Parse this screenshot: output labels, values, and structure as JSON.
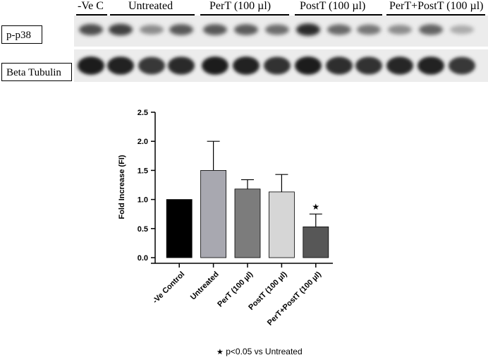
{
  "blot": {
    "lanes": [
      {
        "label": "-Ve C",
        "bands": 1
      },
      {
        "label": "Untreated",
        "bands": 3
      },
      {
        "label": "PerT (100 µl)",
        "bands": 3
      },
      {
        "label": "PostT (100 µl)",
        "bands": 3
      },
      {
        "label": "PerT+PostT (100 µl)",
        "bands": 3
      }
    ],
    "rows": [
      {
        "label": "p-p38",
        "intensities": [
          0.75,
          0.82,
          0.45,
          0.7,
          0.7,
          0.68,
          0.6,
          0.92,
          0.62,
          0.55,
          0.45,
          0.65,
          0.3
        ]
      },
      {
        "label": "Beta Tubulin",
        "intensities": [
          0.98,
          0.95,
          0.85,
          0.92,
          0.97,
          0.96,
          0.88,
          0.97,
          0.9,
          0.88,
          0.93,
          0.95,
          0.85
        ]
      }
    ]
  },
  "chart_data": {
    "type": "bar",
    "categories": [
      "-Ve Control",
      "Untreated",
      "PerT (100 µl)",
      "PostT (100 µl)",
      "PerT+PostT (100 µl)"
    ],
    "values": [
      1.0,
      1.5,
      1.18,
      1.13,
      0.53
    ],
    "errors": [
      0.0,
      0.5,
      0.16,
      0.3,
      0.22
    ],
    "colors": [
      "#000000",
      "#a8a8b0",
      "#7c7c7c",
      "#d6d6d6",
      "#575757"
    ],
    "significant": [
      false,
      false,
      false,
      false,
      true
    ],
    "ylabel": "Fold Increase (FI)",
    "xlabel": "",
    "ylim": [
      0,
      2.5
    ],
    "yticks": [
      "0.0",
      "0.5",
      "1.0",
      "1.5",
      "2.0",
      "2.5"
    ],
    "grid": false,
    "footnote": "p<0.05 vs Untreated",
    "footnote_symbol": "★"
  }
}
